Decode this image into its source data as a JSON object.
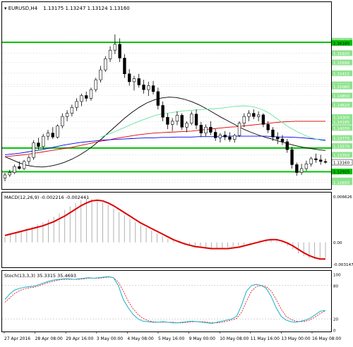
{
  "header": {
    "symbol": "EURUSD,H4",
    "ohlc": "1.13175 1.13247 1.13124 1.13160"
  },
  "colors": {
    "background": "#ffffff",
    "frame": "#000000",
    "level_line": "#00c000",
    "ma_black": "#000000",
    "ma_red": "#e00000",
    "ma_blue": "#0000ff",
    "ma_green": "#66e3a0",
    "label_fill": "#00c000",
    "macd_signal": "#e00000",
    "macd_hist": "#b0b0b0",
    "stoch_main": "#1ab0c8",
    "stoch_signal": "#e00000"
  },
  "chart_data": [
    {
      "type": "candlestick",
      "title": "EURUSD,H4",
      "ylim": [
        1.125,
        1.172
      ],
      "price_axis_labels": [
        "1.16240",
        "1.16185",
        "1.15925",
        "1.15690",
        "1.15415",
        "1.15135",
        "1.15080",
        "1.14850",
        "1.14620",
        "1.14305",
        "1.14185",
        "1.14030",
        "1.13775",
        "1.13570",
        "1.13350",
        "1.13160",
        "1.12925",
        "1.12700",
        "1.12655"
      ],
      "levels": [
        1.162,
        1.1352,
        1.1292
      ],
      "current_price": "1.13160",
      "x_tick_labels": [
        "27 Apr 2016",
        "28 Apr 08:00",
        "29 Apr 16:00",
        "3 May 00:00",
        "4 May 08:00",
        "5 May 16:00",
        "9 May 00:00",
        "10 May 08:00",
        "11 May 16:00",
        "13 May 00:00",
        "16 May 08:00"
      ],
      "candles": [
        [
          1.1276,
          1.1289,
          1.1268,
          1.1284
        ],
        [
          1.1284,
          1.1297,
          1.1279,
          1.129
        ],
        [
          1.129,
          1.131,
          1.1286,
          1.1305
        ],
        [
          1.1305,
          1.1318,
          1.1298,
          1.13
        ],
        [
          1.13,
          1.1322,
          1.1296,
          1.1318
        ],
        [
          1.1318,
          1.1334,
          1.131,
          1.1328
        ],
        [
          1.1328,
          1.1372,
          1.1322,
          1.1365
        ],
        [
          1.1365,
          1.1378,
          1.1348,
          1.1356
        ],
        [
          1.1356,
          1.1388,
          1.135,
          1.1382
        ],
        [
          1.1382,
          1.1398,
          1.1372,
          1.139
        ],
        [
          1.139,
          1.1405,
          1.1375,
          1.138
        ],
        [
          1.138,
          1.1412,
          1.1376,
          1.1408
        ],
        [
          1.1408,
          1.144,
          1.1402,
          1.1432
        ],
        [
          1.1432,
          1.1448,
          1.142,
          1.144
        ],
        [
          1.144,
          1.1462,
          1.1432,
          1.1455
        ],
        [
          1.1455,
          1.1478,
          1.1446,
          1.147
        ],
        [
          1.147,
          1.149,
          1.1458,
          1.1485
        ],
        [
          1.1485,
          1.1495,
          1.147,
          1.1478
        ],
        [
          1.1478,
          1.1505,
          1.1472,
          1.15
        ],
        [
          1.15,
          1.153,
          1.1494,
          1.1525
        ],
        [
          1.1525,
          1.156,
          1.1518,
          1.155
        ],
        [
          1.155,
          1.1585,
          1.1545,
          1.1578
        ],
        [
          1.1578,
          1.161,
          1.157,
          1.16
        ],
        [
          1.16,
          1.164,
          1.159,
          1.1615
        ],
        [
          1.1615,
          1.163,
          1.157,
          1.158
        ],
        [
          1.158,
          1.159,
          1.153,
          1.154
        ],
        [
          1.154,
          1.1552,
          1.151,
          1.152
        ],
        [
          1.152,
          1.1535,
          1.1498,
          1.1528
        ],
        [
          1.1528,
          1.154,
          1.1505,
          1.1512
        ],
        [
          1.1512,
          1.1525,
          1.149,
          1.15
        ],
        [
          1.15,
          1.152,
          1.1484,
          1.151
        ],
        [
          1.151,
          1.1522,
          1.1488,
          1.1495
        ],
        [
          1.1495,
          1.1505,
          1.145,
          1.146
        ],
        [
          1.146,
          1.147,
          1.142,
          1.143
        ],
        [
          1.143,
          1.144,
          1.14,
          1.1412
        ],
        [
          1.1412,
          1.1428,
          1.1395,
          1.142
        ],
        [
          1.142,
          1.1445,
          1.141,
          1.1435
        ],
        [
          1.1435,
          1.144,
          1.1398,
          1.1405
        ],
        [
          1.1405,
          1.142,
          1.1392,
          1.1415
        ],
        [
          1.1415,
          1.1445,
          1.141,
          1.1438
        ],
        [
          1.1438,
          1.145,
          1.14,
          1.141
        ],
        [
          1.141,
          1.1418,
          1.138,
          1.139
        ],
        [
          1.139,
          1.1412,
          1.1382,
          1.1405
        ],
        [
          1.1405,
          1.142,
          1.1385,
          1.1392
        ],
        [
          1.1392,
          1.14,
          1.137,
          1.1378
        ],
        [
          1.1378,
          1.139,
          1.1366,
          1.1385
        ],
        [
          1.1385,
          1.1395,
          1.1372,
          1.138
        ],
        [
          1.138,
          1.1392,
          1.1368,
          1.1374
        ],
        [
          1.1374,
          1.1388,
          1.1366,
          1.1384
        ],
        [
          1.1384,
          1.142,
          1.138,
          1.1415
        ],
        [
          1.1415,
          1.144,
          1.1405,
          1.1432
        ],
        [
          1.1432,
          1.1448,
          1.142,
          1.144
        ],
        [
          1.144,
          1.145,
          1.1425,
          1.1432
        ],
        [
          1.1432,
          1.1445,
          1.142,
          1.1436
        ],
        [
          1.1436,
          1.144,
          1.1405,
          1.1412
        ],
        [
          1.1412,
          1.142,
          1.139,
          1.1398
        ],
        [
          1.1398,
          1.1405,
          1.137,
          1.138
        ],
        [
          1.138,
          1.1392,
          1.1362,
          1.1375
        ],
        [
          1.1375,
          1.1385,
          1.136,
          1.1368
        ],
        [
          1.1368,
          1.1375,
          1.134,
          1.1348
        ],
        [
          1.1348,
          1.1355,
          1.13,
          1.131
        ],
        [
          1.131,
          1.1315,
          1.1282,
          1.129
        ],
        [
          1.129,
          1.1312,
          1.1284,
          1.13
        ],
        [
          1.13,
          1.132,
          1.1294,
          1.1312
        ],
        [
          1.1312,
          1.133,
          1.1305,
          1.1325
        ],
        [
          1.1325,
          1.1338,
          1.1315,
          1.1322
        ],
        [
          1.1322,
          1.1335,
          1.131,
          1.1318
        ],
        [
          1.1318,
          1.1325,
          1.1312,
          1.1316
        ]
      ],
      "moving_averages": {
        "black": [
          1.133,
          1.1322,
          1.1314,
          1.1308,
          1.1305,
          1.1304,
          1.1306,
          1.131,
          1.1316,
          1.1324,
          1.1334,
          1.1346,
          1.136,
          1.1376,
          1.1393,
          1.141,
          1.1427,
          1.1442,
          1.1455,
          1.1466,
          1.1474,
          1.1479,
          1.1481,
          1.148,
          1.1476,
          1.147,
          1.1462,
          1.1452,
          1.1441,
          1.143,
          1.142,
          1.141,
          1.14,
          1.1392,
          1.1385,
          1.1379,
          1.1374,
          1.1368,
          1.1363,
          1.1358,
          1.1354,
          1.1351,
          1.1348,
          1.1346
        ],
        "red": [
          1.133,
          1.1332,
          1.1334,
          1.1336,
          1.1339,
          1.1342,
          1.1345,
          1.1348,
          1.1351,
          1.1354,
          1.1358,
          1.1362,
          1.1366,
          1.137,
          1.1373,
          1.1377,
          1.138,
          1.1383,
          1.1386,
          1.1388,
          1.139,
          1.1391,
          1.1392,
          1.1393,
          1.1394,
          1.1395,
          1.1397,
          1.1399,
          1.1401,
          1.1403,
          1.1405,
          1.1406,
          1.1408,
          1.141,
          1.1412,
          1.1414,
          1.1416,
          1.1418,
          1.1419,
          1.142,
          1.142,
          1.142,
          1.142,
          1.142
        ],
        "blue": [
          1.1335,
          1.1337,
          1.1339,
          1.1342,
          1.1345,
          1.1348,
          1.1352,
          1.1356,
          1.136,
          1.1363,
          1.1366,
          1.1368,
          1.137,
          1.1372,
          1.1373,
          1.1374,
          1.1375,
          1.1376,
          1.1377,
          1.1378,
          1.1378,
          1.1379,
          1.1379,
          1.138,
          1.138,
          1.138,
          1.1381,
          1.1381,
          1.1381,
          1.1381,
          1.1382,
          1.1382,
          1.1382,
          1.1382,
          1.1382,
          1.1382,
          1.1381,
          1.138,
          1.138,
          1.1379,
          1.1378,
          1.1376,
          1.1374,
          1.1372
        ],
        "green": [
          1.138,
          1.1385,
          1.139,
          1.1396,
          1.1402,
          1.1408,
          1.1414,
          1.142,
          1.1425,
          1.143,
          1.1435,
          1.1438,
          1.144,
          1.1442,
          1.1444,
          1.1446,
          1.1447,
          1.1448,
          1.1449,
          1.145,
          1.1451,
          1.1452,
          1.1453,
          1.1455,
          1.1457,
          1.1458,
          1.1459,
          1.1458,
          1.1456,
          1.1452,
          1.1446,
          1.1438,
          1.1428,
          1.1418,
          1.1408,
          1.14,
          1.1392,
          1.1386,
          1.138,
          1.1376,
          1.1372,
          1.137
        ]
      }
    },
    {
      "type": "line",
      "title": "MACD(12,26,9) -0.002216 -0.002441",
      "ylim": [
        -0.0035,
        0.0068
      ],
      "axis_labels": [
        "0.006626",
        "0.00",
        "-0.003147"
      ],
      "signal": [
        0.001,
        0.0012,
        0.0014,
        0.0016,
        0.0018,
        0.002,
        0.0022,
        0.0024,
        0.0027,
        0.003,
        0.0034,
        0.0038,
        0.0043,
        0.0048,
        0.0053,
        0.0057,
        0.006,
        0.0061,
        0.006,
        0.0057,
        0.0053,
        0.0048,
        0.0043,
        0.0038,
        0.0033,
        0.0028,
        0.0024,
        0.002,
        0.0016,
        0.0012,
        0.0008,
        0.0004,
        0.0001,
        -0.0002,
        -0.0004,
        -0.0006,
        -0.0007,
        -0.0008,
        -0.0009,
        -0.0009,
        -0.0009,
        -0.0009,
        -0.0008,
        -0.0007,
        -0.0005,
        -0.0003,
        -0.0001,
        0.0001,
        0.0003,
        0.0004,
        0.0004,
        0.0002,
        -0.0001,
        -0.0005,
        -0.001,
        -0.0015,
        -0.0019,
        -0.0022,
        -0.0024,
        -0.0024
      ],
      "histogram": [
        0.0008,
        0.0011,
        0.0014,
        0.0017,
        0.002,
        0.0023,
        0.0026,
        0.0029,
        0.0033,
        0.0037,
        0.0042,
        0.0047,
        0.0052,
        0.0057,
        0.0061,
        0.0063,
        0.0063,
        0.0061,
        0.0058,
        0.0054,
        0.0049,
        0.0044,
        0.0039,
        0.0034,
        0.0029,
        0.0025,
        0.0021,
        0.0017,
        0.0013,
        0.0009,
        0.0005,
        0.0002,
        -0.0001,
        -0.0003,
        -0.0005,
        -0.0006,
        -0.0007,
        -0.0008,
        -0.0008,
        -0.0008,
        -0.0008,
        -0.0007,
        -0.0006,
        -0.0005,
        -0.0003,
        -0.0001,
        0.0001,
        0.0003,
        0.0004,
        0.0004,
        0.0002,
        -0.0001,
        -0.0005,
        -0.001,
        -0.0016,
        -0.002,
        -0.0023,
        -0.0024,
        -0.0023,
        -0.0022
      ]
    },
    {
      "type": "line",
      "title": "Stoch(13,3,3) 35.3315 35.4693",
      "ylim": [
        0,
        100
      ],
      "axis_labels": [
        "100",
        "80",
        "20",
        "0"
      ],
      "main": [
        55,
        65,
        72,
        75,
        77,
        78,
        79,
        82,
        85,
        88,
        90,
        91,
        92,
        92,
        91,
        92,
        93,
        94,
        93,
        94,
        95,
        96,
        94,
        80,
        55,
        40,
        28,
        20,
        16,
        15,
        14,
        14,
        15,
        14,
        13,
        13,
        14,
        15,
        16,
        15,
        14,
        13,
        12,
        14,
        16,
        18,
        20,
        25,
        45,
        70,
        80,
        82,
        80,
        75,
        60,
        40,
        25,
        18,
        15,
        14,
        16,
        18,
        22,
        28,
        34,
        35
      ],
      "signal": [
        50,
        58,
        66,
        71,
        74,
        76,
        77,
        80,
        83,
        86,
        88,
        90,
        91,
        91,
        91,
        91,
        92,
        93,
        93,
        93,
        94,
        95,
        94,
        86,
        70,
        52,
        38,
        28,
        21,
        17,
        15,
        14,
        14,
        14,
        14,
        13,
        13,
        14,
        15,
        15,
        15,
        14,
        13,
        13,
        14,
        16,
        18,
        21,
        32,
        52,
        70,
        78,
        80,
        78,
        70,
        55,
        38,
        25,
        19,
        16,
        15,
        16,
        19,
        24,
        30,
        35
      ]
    }
  ]
}
